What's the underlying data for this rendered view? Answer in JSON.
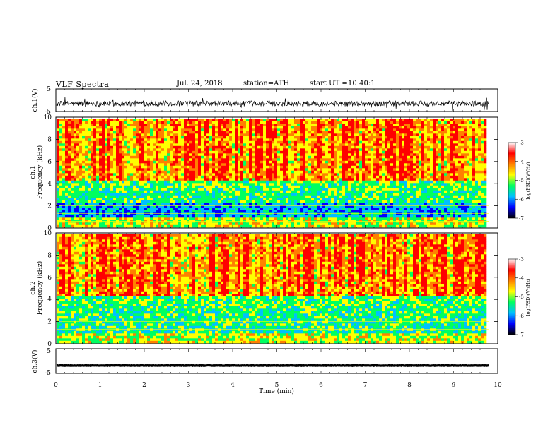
{
  "header": {
    "title": "VLF Spectra",
    "date": "Jul. 24, 2018",
    "station": "station=ATH",
    "start_label": "start UT =",
    "start_value": "10:40:1"
  },
  "chart_data": [
    {
      "type": "line",
      "name": "ch1-waveform",
      "ylabel": "ch.1(V)",
      "ylim": [
        -5,
        5
      ],
      "ytick_labels": [
        "5",
        "-5"
      ],
      "xlim": [
        0,
        10
      ],
      "x_end": 9.8,
      "baseline": -1.5,
      "noise_amplitude": 1.2,
      "color": "#000000"
    },
    {
      "type": "heatmap",
      "name": "ch1-spectrogram",
      "ylabel": "ch.1",
      "ylabel2": "Frequency (kHz)",
      "ylim": [
        0,
        10
      ],
      "ytick_labels": [
        "0",
        "2",
        "4",
        "6",
        "8",
        "10"
      ],
      "xlim": [
        0,
        10
      ],
      "x_end": 9.8,
      "colorbar": {
        "label": "log(PSD)(V²/Hz)",
        "range": [
          -7,
          -3
        ],
        "tick_labels": [
          "-3",
          "-4",
          "-5",
          "-6",
          "-7"
        ],
        "colors": [
          "#000000",
          "#0000ff",
          "#00c0ff",
          "#00ff60",
          "#ffff00",
          "#ff8000",
          "#ff0000",
          "#ffffff"
        ]
      }
    },
    {
      "type": "heatmap",
      "name": "ch2-spectrogram",
      "ylabel": "ch.2",
      "ylabel2": "Frequency (kHz)",
      "ylim": [
        0,
        10
      ],
      "ytick_labels": [
        "0",
        "2",
        "4",
        "6",
        "8",
        "10"
      ],
      "xlim": [
        0,
        10
      ],
      "x_end": 9.8,
      "colorbar": {
        "label": "log(PSD)(V²/Hz)",
        "range": [
          -7,
          -3
        ],
        "tick_labels": [
          "-3",
          "-4",
          "-5",
          "-6",
          "-7"
        ],
        "colors": [
          "#000000",
          "#0000ff",
          "#00c0ff",
          "#00ff60",
          "#ffff00",
          "#ff8000",
          "#ff0000",
          "#ffffff"
        ]
      }
    },
    {
      "type": "line",
      "name": "ch3-waveform",
      "ylabel": "ch.3(V)",
      "ylim": [
        -5,
        5
      ],
      "ytick_labels": [
        "5",
        "-5"
      ],
      "xlim": [
        0,
        10
      ],
      "x_end": 9.8,
      "baseline": -1.8,
      "noise_amplitude": 0.1,
      "color": "#000000"
    }
  ],
  "xaxis": {
    "label": "Time (min)",
    "tick_labels": [
      "0",
      "1",
      "2",
      "3",
      "4",
      "5",
      "6",
      "7",
      "8",
      "9",
      "10"
    ]
  }
}
